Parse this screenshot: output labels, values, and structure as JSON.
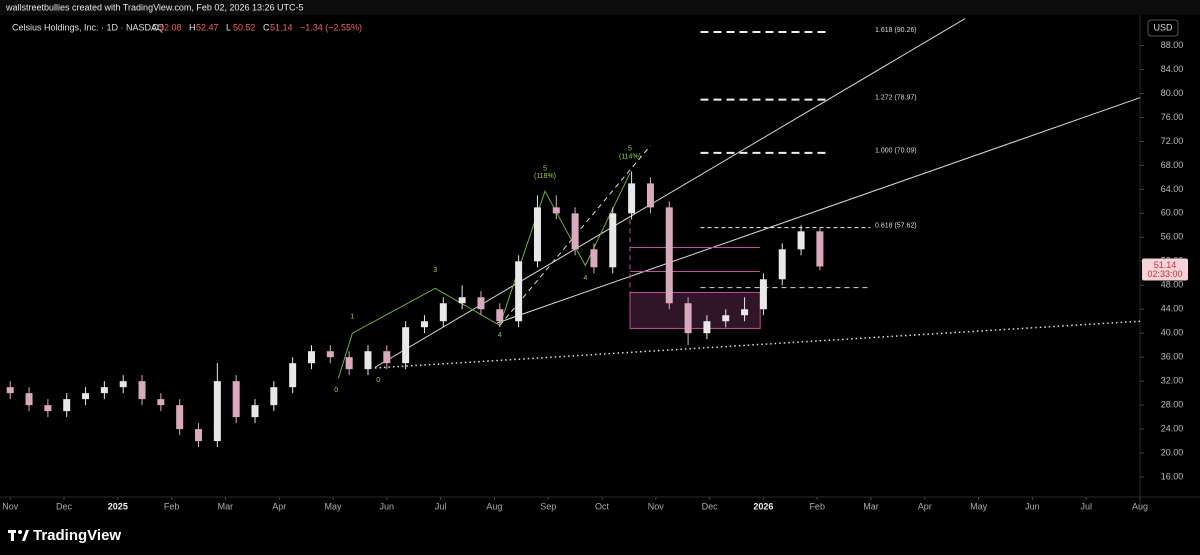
{
  "chart_data": {
    "type": "candlestick",
    "header": "wallstreetbullies created with TradingView.com, Feb 02, 2026 13:26 UTC-5",
    "symbol": "Celsius Holdings, Inc. · 1D · NASDAQ",
    "ohlc_labels": [
      "O",
      "H",
      "L",
      "C"
    ],
    "ohlc": [
      52.08,
      52.47,
      50.52,
      51.14
    ],
    "change": "−1.34 (−2.55%)",
    "currency": "USD",
    "last_price": 51.14,
    "countdown": "02:33:00",
    "brand": "TradingView",
    "x": [
      0,
      0.35,
      0.7,
      1.05,
      1.4,
      1.75,
      2.1,
      2.45,
      2.8,
      3.15,
      3.5,
      3.85,
      4.2,
      4.55,
      4.9,
      5.25,
      5.6,
      5.95,
      6.3,
      6.65,
      7,
      7.35,
      7.7,
      8.05,
      8.4,
      8.75,
      9.1,
      9.45,
      9.8,
      10.15,
      10.5,
      10.85,
      11.2,
      11.55,
      11.9,
      12.25,
      12.6,
      12.95,
      13.3,
      13.65,
      14,
      14.35,
      14.7,
      15.05
    ],
    "open": [
      31,
      30,
      28,
      27,
      29,
      30,
      31,
      32,
      29,
      28,
      24,
      22,
      32,
      26,
      28,
      31,
      35,
      37,
      36,
      34,
      37,
      35,
      41,
      42,
      45,
      46,
      44,
      42,
      52,
      61,
      60,
      54,
      51,
      60,
      65,
      61,
      45,
      40,
      42,
      43,
      44,
      49,
      54,
      57
    ],
    "high": [
      32,
      31,
      29,
      30,
      31,
      32,
      33,
      33,
      30,
      29,
      25,
      35,
      33,
      29,
      32,
      36,
      38,
      38,
      37,
      38,
      38,
      42,
      43,
      46,
      48,
      47,
      45,
      53,
      63,
      63,
      61,
      55,
      61,
      67,
      66,
      62,
      46,
      43,
      44,
      46,
      50,
      55,
      58,
      57.5
    ],
    "low": [
      29,
      27,
      26,
      26,
      28,
      29,
      30,
      28,
      27,
      23,
      21,
      21,
      25,
      25,
      27,
      30,
      34,
      35,
      33,
      33,
      34,
      34,
      40,
      41,
      44,
      43,
      41,
      41,
      51,
      59,
      53,
      50,
      50,
      59,
      60,
      44,
      38,
      39,
      41,
      42,
      43,
      48,
      53,
      50.5
    ],
    "close": [
      30,
      28,
      27,
      29,
      30,
      31,
      32,
      29,
      28,
      24,
      22,
      32,
      26,
      28,
      31,
      35,
      37,
      36,
      34,
      37,
      35,
      41,
      42,
      45,
      46,
      44,
      42,
      52,
      61,
      60,
      54,
      51,
      60,
      65,
      61,
      45,
      40,
      42,
      43,
      44,
      49,
      54,
      57,
      51.14
    ],
    "up_color": "#e8e8e8",
    "down_color": "#d9a9bd",
    "xlim": [
      -0.19,
      21
    ],
    "xticks": [
      {
        "value": 0,
        "label": "Nov"
      },
      {
        "value": 1,
        "label": "Dec"
      },
      {
        "value": 2,
        "label": "2025"
      },
      {
        "value": 3,
        "label": "Feb"
      },
      {
        "value": 4,
        "label": "Mar"
      },
      {
        "value": 5,
        "label": "Apr"
      },
      {
        "value": 6,
        "label": "May"
      },
      {
        "value": 7,
        "label": "Jun"
      },
      {
        "value": 8,
        "label": "Jul"
      },
      {
        "value": 9,
        "label": "Aug"
      },
      {
        "value": 10,
        "label": "Sep"
      },
      {
        "value": 11,
        "label": "Oct"
      },
      {
        "value": 12,
        "label": "Nov"
      },
      {
        "value": 13,
        "label": "Dec"
      },
      {
        "value": 14,
        "label": "2026"
      },
      {
        "value": 15,
        "label": "Feb"
      },
      {
        "value": 16,
        "label": "Mar"
      },
      {
        "value": 17,
        "label": "Apr"
      },
      {
        "value": 18,
        "label": "May"
      },
      {
        "value": 19,
        "label": "Jun"
      },
      {
        "value": 20,
        "label": "Jul"
      },
      {
        "value": 21,
        "label": "Aug"
      }
    ],
    "ylim": [
      10.5,
      93.1
    ],
    "yticks": [
      {
        "value": 16,
        "label": "16.00"
      },
      {
        "value": 20,
        "label": "20.00"
      },
      {
        "value": 24,
        "label": "24.00"
      },
      {
        "value": 28,
        "label": "28.00"
      },
      {
        "value": 32,
        "label": "32.00"
      },
      {
        "value": 36,
        "label": "36.00"
      },
      {
        "value": 40,
        "label": "40.00"
      },
      {
        "value": 44,
        "label": "44.00"
      },
      {
        "value": 48,
        "label": "48.00"
      },
      {
        "value": 52,
        "label": "52.00"
      },
      {
        "value": 56,
        "label": "56.00"
      },
      {
        "value": 60,
        "label": "60.00"
      },
      {
        "value": 64,
        "label": "64.00"
      },
      {
        "value": 68,
        "label": "68.00"
      },
      {
        "value": 72,
        "label": "72.00"
      },
      {
        "value": 76,
        "label": "76.00"
      },
      {
        "value": 80,
        "label": "80.00"
      },
      {
        "value": 84,
        "label": "84.00"
      },
      {
        "value": 88,
        "label": "88.00"
      }
    ],
    "trendlines": [
      {
        "x": [
          6.78,
          17.75
        ],
        "y": [
          34.3,
          92.5
        ],
        "style": "solid",
        "color": "#d8d8d8"
      },
      {
        "x": [
          9.05,
          21
        ],
        "y": [
          41.7,
          79.3
        ],
        "style": "solid",
        "color": "#d8d8d8"
      },
      {
        "x": [
          6.78,
          21
        ],
        "y": [
          34.2,
          42
        ],
        "style": "dotted",
        "color": "#e0e0e0"
      },
      {
        "x": [
          9.1,
          11.9
        ],
        "y": [
          41.3,
          71.3
        ],
        "style": "dashed",
        "color": "#d8d8d8"
      },
      {
        "x": [
          6.1,
          6.36,
          7.9,
          9.1,
          9.94,
          10.69,
          11.52
        ],
        "y": [
          32.5,
          40,
          47.5,
          41.3,
          63.7,
          51.3,
          66.7
        ],
        "style": "solid",
        "color": "#6fae3c"
      },
      {
        "x": [
          11.52,
          13.94
        ],
        "y": [
          54.3,
          54.3
        ],
        "style": "solid",
        "color": "#c0509a"
      },
      {
        "x": [
          11.52,
          13.94
        ],
        "y": [
          50.3,
          50.3
        ],
        "style": "solid",
        "color": "#c0509a"
      },
      {
        "x": [
          12.83,
          15.99
        ],
        "y": [
          47.6,
          47.6
        ],
        "style": "dashed",
        "color": "#d8d8d8"
      },
      {
        "x": [
          11.52,
          11.52
        ],
        "y": [
          59,
          40.8
        ],
        "style": "dashed",
        "color": "#c0509a"
      }
    ],
    "zones": [
      {
        "x": [
          11.52,
          13.94
        ],
        "y": [
          40.8,
          46.8
        ],
        "color": "#c0509a"
      }
    ],
    "wave_labels": [
      {
        "text": "0",
        "x": 6.06,
        "y": 30.5
      },
      {
        "text": "0",
        "x": 6.84,
        "y": 32.2
      },
      {
        "text": "1",
        "x": 6.36,
        "y": 42.8
      },
      {
        "text": "3",
        "x": 7.9,
        "y": 50.5
      },
      {
        "text": "4",
        "x": 9.1,
        "y": 39.7
      },
      {
        "text": "5",
        "x": 9.94,
        "y": 67.5
      },
      {
        "text": "(118%)",
        "x": 9.94,
        "y": 66.2
      },
      {
        "text": "4",
        "x": 10.69,
        "y": 49.2
      },
      {
        "text": "5",
        "x": 11.52,
        "y": 70.8
      },
      {
        "text": "(114%)",
        "x": 11.52,
        "y": 69.5
      }
    ],
    "fib_levels": [
      {
        "label": "1.618 (90.26)",
        "value": 90.26,
        "x": [
          12.83,
          15.24
        ]
      },
      {
        "label": "1.272 (78.97)",
        "value": 78.97,
        "x": [
          12.83,
          15.24
        ]
      },
      {
        "label": "1.000 (70.09)",
        "value": 70.09,
        "x": [
          12.83,
          15.24
        ]
      },
      {
        "label": "0.618 (57.62)",
        "value": 57.62,
        "x": [
          12.83,
          15.99
        ]
      }
    ]
  }
}
